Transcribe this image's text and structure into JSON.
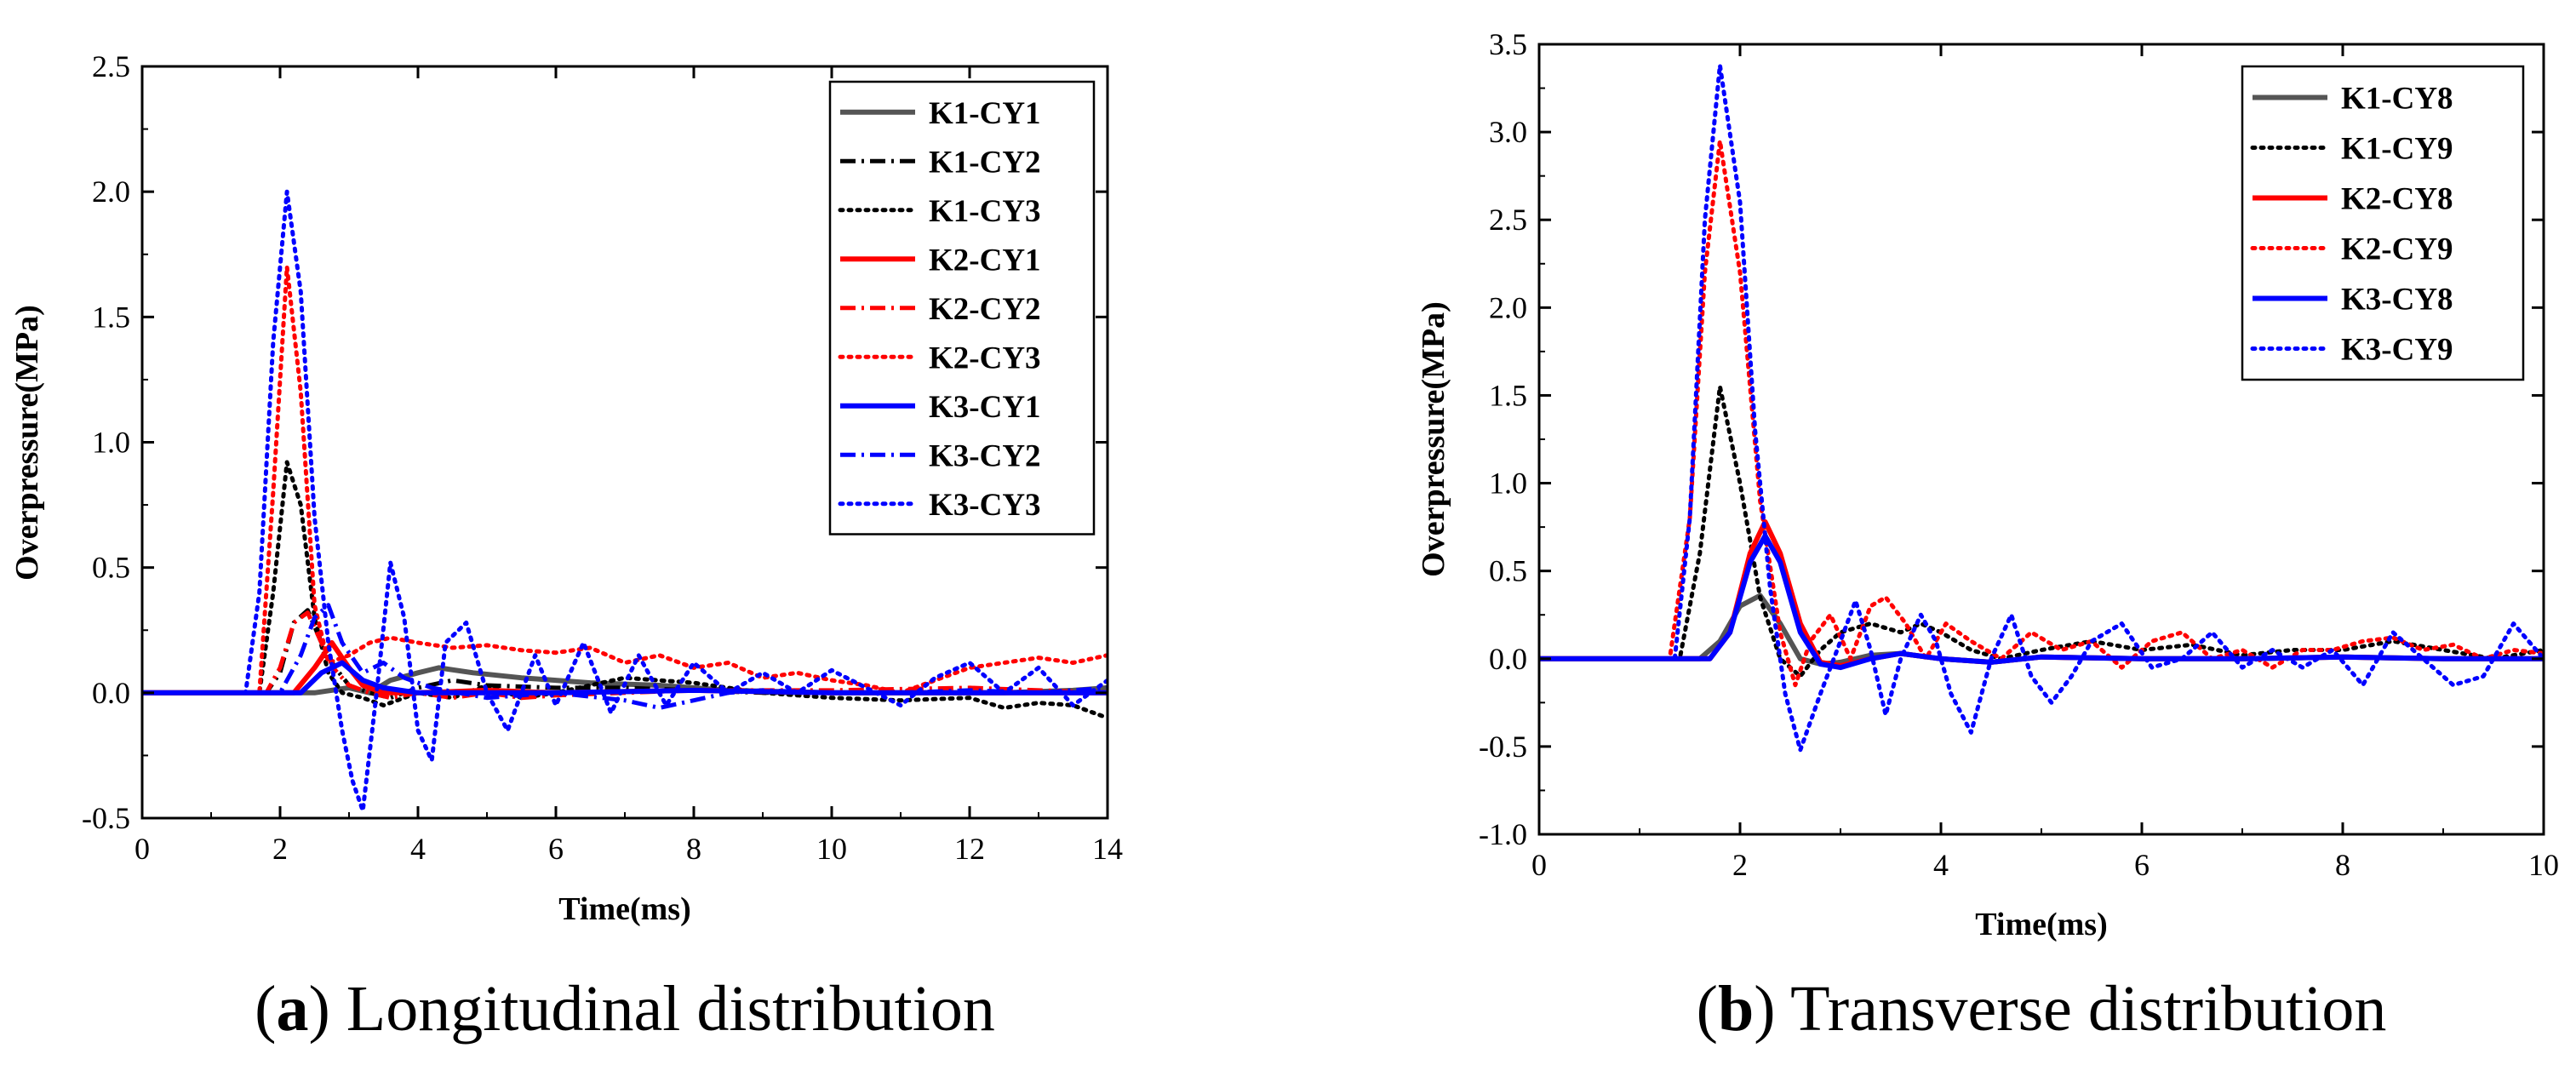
{
  "chart_data": [
    {
      "type": "line",
      "panel_letter": "a",
      "caption": "Longitudinal distribution",
      "xlabel": "Time(ms)",
      "ylabel": "Overpressure(MPa)",
      "xlim": [
        0,
        14
      ],
      "ylim": [
        -0.5,
        2.5
      ],
      "xticks": [
        0,
        2,
        4,
        6,
        8,
        10,
        12,
        14
      ],
      "yticks": [
        -0.5,
        0.0,
        0.5,
        1.0,
        1.5,
        2.0,
        2.5
      ],
      "grid": false,
      "legend_position": "top-right",
      "series": [
        {
          "name": "K1-CY1",
          "color": "#555555",
          "style": "solid",
          "x": [
            0,
            1.5,
            2.0,
            2.5,
            3.0,
            3.3,
            3.6,
            4.0,
            4.3,
            4.8,
            5.5,
            6.0,
            6.5,
            7.5,
            8.5,
            10.0,
            11.5,
            12.5,
            13.5,
            14.0
          ],
          "y": [
            0,
            0,
            0,
            0.0,
            0.02,
            0.0,
            0.05,
            0.08,
            0.1,
            0.08,
            0.06,
            0.05,
            0.04,
            0.03,
            0.01,
            0.0,
            0.0,
            0.0,
            0.01,
            0.02
          ]
        },
        {
          "name": "K1-CY2",
          "color": "#000000",
          "style": "dashdot",
          "x": [
            0,
            1.8,
            2.0,
            2.2,
            2.4,
            2.6,
            2.8,
            3.0,
            3.3,
            3.6,
            4.0,
            4.5,
            5.0,
            6.0,
            7.0,
            8.0,
            9.0,
            10.0,
            12.0,
            14.0
          ],
          "y": [
            0,
            0,
            0.08,
            0.28,
            0.33,
            0.2,
            0.1,
            0.03,
            0.0,
            -0.02,
            0.02,
            0.05,
            0.03,
            0.02,
            0.02,
            0.01,
            0.0,
            0.0,
            0.0,
            0.0
          ]
        },
        {
          "name": "K1-CY3",
          "color": "#000000",
          "style": "dot",
          "x": [
            0,
            1.7,
            1.9,
            2.1,
            2.3,
            2.5,
            2.7,
            2.9,
            3.2,
            3.5,
            4.0,
            4.5,
            5.0,
            5.5,
            6.0,
            6.5,
            7.0,
            8.0,
            9.0,
            10.0,
            11.0,
            12.0,
            12.5,
            13.0,
            13.5,
            14.0
          ],
          "y": [
            0,
            0,
            0.4,
            0.92,
            0.75,
            0.3,
            0.08,
            0.0,
            -0.02,
            -0.05,
            0.0,
            -0.02,
            0.03,
            -0.02,
            0.0,
            0.03,
            0.06,
            0.04,
            0.0,
            -0.02,
            -0.03,
            -0.02,
            -0.06,
            -0.04,
            -0.05,
            -0.1
          ]
        },
        {
          "name": "K2-CY1",
          "color": "#ff0000",
          "style": "solid",
          "x": [
            0,
            2.2,
            2.5,
            2.75,
            3.0,
            3.2,
            3.5,
            4.0,
            5.0,
            6.0,
            8.0,
            10.0,
            12.0,
            14.0
          ],
          "y": [
            0,
            0,
            0.1,
            0.2,
            0.1,
            0.03,
            0.0,
            0.0,
            0.01,
            0.0,
            0.01,
            0.0,
            0.0,
            0.0
          ]
        },
        {
          "name": "K2-CY2",
          "color": "#ff0000",
          "style": "dashdot",
          "x": [
            0,
            1.8,
            2.0,
            2.2,
            2.4,
            2.6,
            2.8,
            3.0,
            3.3,
            3.6,
            4.0,
            4.5,
            5.0,
            5.5,
            6.0,
            7.0,
            8.0,
            10.0,
            12.0,
            14.0
          ],
          "y": [
            0,
            0,
            0.1,
            0.28,
            0.32,
            0.2,
            0.09,
            0.03,
            0.0,
            -0.02,
            0.0,
            -0.02,
            0.0,
            -0.02,
            -0.01,
            0.0,
            0.01,
            0.01,
            0.02,
            0.0
          ]
        },
        {
          "name": "K2-CY3",
          "color": "#ff0000",
          "style": "dot",
          "x": [
            0,
            1.7,
            1.9,
            2.1,
            2.3,
            2.5,
            2.7,
            3.0,
            3.3,
            3.6,
            4.0,
            4.5,
            5.0,
            5.5,
            6.0,
            6.5,
            7.0,
            7.5,
            8.0,
            8.5,
            9.0,
            9.5,
            10.0,
            10.5,
            11.0,
            11.5,
            12.0,
            12.5,
            13.0,
            13.5,
            14.0
          ],
          "y": [
            0,
            0,
            0.8,
            1.7,
            1.2,
            0.35,
            0.12,
            0.15,
            0.2,
            0.22,
            0.2,
            0.18,
            0.19,
            0.17,
            0.16,
            0.18,
            0.12,
            0.15,
            0.1,
            0.12,
            0.06,
            0.08,
            0.05,
            0.03,
            0.0,
            0.05,
            0.1,
            0.12,
            0.14,
            0.12,
            0.15
          ]
        },
        {
          "name": "K3-CY1",
          "color": "#0000ff",
          "style": "solid",
          "x": [
            0,
            2.3,
            2.6,
            2.9,
            3.2,
            3.5,
            4.0,
            5.0,
            6.0,
            8.0,
            10.0,
            12.0,
            14.0
          ],
          "y": [
            0,
            0,
            0.08,
            0.12,
            0.05,
            0.02,
            0.0,
            0.0,
            0.0,
            0.01,
            0.0,
            0.0,
            0.0
          ]
        },
        {
          "name": "K3-CY2",
          "color": "#0000ff",
          "style": "dashdot",
          "x": [
            0,
            2.0,
            2.3,
            2.5,
            2.7,
            2.9,
            3.2,
            3.5,
            3.8,
            4.2,
            5.0,
            6.0,
            7.0,
            7.5,
            8.0,
            8.5,
            9.0,
            10.0,
            11.0,
            12.0,
            13.0,
            14.0
          ],
          "y": [
            0,
            0,
            0.15,
            0.3,
            0.35,
            0.2,
            0.08,
            0.12,
            0.06,
            0.02,
            -0.02,
            0.0,
            -0.03,
            -0.06,
            -0.03,
            0.0,
            0.01,
            0.0,
            0.0,
            0.01,
            0.0,
            0.02
          ]
        },
        {
          "name": "K3-CY3",
          "color": "#0000ff",
          "style": "dot",
          "x": [
            0,
            1.5,
            1.7,
            1.9,
            2.1,
            2.3,
            2.5,
            2.7,
            2.9,
            3.05,
            3.2,
            3.4,
            3.6,
            3.8,
            4.0,
            4.2,
            4.4,
            4.7,
            5.0,
            5.3,
            5.7,
            6.0,
            6.4,
            6.8,
            7.2,
            7.6,
            8.0,
            8.5,
            9.0,
            9.5,
            10.0,
            10.5,
            11.0,
            11.5,
            12.0,
            12.5,
            13.0,
            13.5,
            14.0
          ],
          "y": [
            0,
            0,
            0.4,
            1.4,
            2.0,
            1.6,
            0.7,
            0.2,
            -0.15,
            -0.35,
            -0.47,
            0.0,
            0.52,
            0.3,
            -0.15,
            -0.27,
            0.2,
            0.28,
            0.0,
            -0.15,
            0.15,
            -0.05,
            0.2,
            -0.08,
            0.15,
            -0.05,
            0.12,
            0.0,
            0.08,
            0.0,
            0.09,
            0.02,
            -0.05,
            0.06,
            0.12,
            0.0,
            0.1,
            -0.05,
            0.05
          ]
        }
      ]
    },
    {
      "type": "line",
      "panel_letter": "b",
      "caption": "Transverse distribution",
      "xlabel": "Time(ms)",
      "ylabel": "Overpressure(MPa)",
      "xlim": [
        0,
        10
      ],
      "ylim": [
        -1.0,
        3.5
      ],
      "xticks": [
        0,
        2,
        4,
        6,
        8,
        10
      ],
      "yticks": [
        -1.0,
        -0.5,
        0.0,
        0.5,
        1.0,
        1.5,
        2.0,
        2.5,
        3.0,
        3.5
      ],
      "grid": false,
      "legend_position": "top-right",
      "series": [
        {
          "name": "K1-CY8",
          "color": "#555555",
          "style": "solid",
          "x": [
            0,
            1.6,
            1.8,
            2.0,
            2.2,
            2.4,
            2.6,
            2.8,
            3.0,
            3.3,
            3.6,
            4.0,
            4.5,
            5.0,
            6.0,
            7.0,
            8.0,
            9.0,
            10.0
          ],
          "y": [
            0,
            0,
            0.1,
            0.3,
            0.36,
            0.2,
            0.0,
            -0.03,
            -0.02,
            0.02,
            0.03,
            0.0,
            -0.02,
            0.01,
            0.0,
            0.0,
            0.01,
            0.0,
            0.0
          ]
        },
        {
          "name": "K1-CY9",
          "color": "#000000",
          "style": "dot",
          "x": [
            0,
            1.4,
            1.6,
            1.8,
            2.0,
            2.2,
            2.4,
            2.6,
            2.8,
            3.0,
            3.3,
            3.6,
            3.8,
            4.0,
            4.3,
            4.6,
            5.0,
            5.5,
            6.0,
            6.5,
            7.0,
            7.5,
            8.0,
            8.5,
            9.0,
            9.5,
            10.0
          ],
          "y": [
            0,
            0,
            0.6,
            1.55,
            1.0,
            0.35,
            0.0,
            -0.1,
            0.05,
            0.15,
            0.2,
            0.15,
            0.2,
            0.15,
            0.05,
            0.0,
            0.05,
            0.1,
            0.05,
            0.08,
            0.02,
            0.05,
            0.05,
            0.1,
            0.05,
            0.0,
            0.05
          ]
        },
        {
          "name": "K2-CY8",
          "color": "#ff0000",
          "style": "solid",
          "x": [
            0,
            1.7,
            1.9,
            2.1,
            2.25,
            2.4,
            2.6,
            2.8,
            3.0,
            3.3,
            3.6,
            4.0,
            4.5,
            5.0,
            6.0,
            7.0,
            8.0,
            9.0,
            10.0
          ],
          "y": [
            0,
            0,
            0.15,
            0.6,
            0.78,
            0.6,
            0.2,
            -0.02,
            -0.04,
            0.0,
            0.03,
            0.0,
            -0.02,
            0.01,
            0.0,
            0.0,
            0.01,
            0.0,
            0.0
          ]
        },
        {
          "name": "K2-CY9",
          "color": "#ff0000",
          "style": "dot",
          "x": [
            0,
            1.3,
            1.5,
            1.65,
            1.8,
            2.0,
            2.2,
            2.4,
            2.55,
            2.7,
            2.9,
            3.1,
            3.3,
            3.45,
            3.65,
            3.85,
            4.05,
            4.3,
            4.6,
            4.9,
            5.2,
            5.5,
            5.8,
            6.1,
            6.4,
            6.7,
            7.0,
            7.3,
            7.6,
            7.9,
            8.2,
            8.5,
            8.8,
            9.1,
            9.4,
            9.7,
            10.0
          ],
          "y": [
            0,
            0,
            0.8,
            2.2,
            2.95,
            2.2,
            0.9,
            0.15,
            -0.15,
            0.1,
            0.25,
            0.0,
            0.3,
            0.35,
            0.2,
            0.0,
            0.2,
            0.1,
            0.0,
            0.15,
            0.05,
            0.1,
            -0.05,
            0.1,
            0.15,
            0.0,
            0.05,
            -0.05,
            0.05,
            0.05,
            0.1,
            0.12,
            0.05,
            0.08,
            0.0,
            0.05,
            0.03
          ]
        },
        {
          "name": "K3-CY8",
          "color": "#0000ff",
          "style": "solid",
          "x": [
            0,
            1.7,
            1.9,
            2.1,
            2.25,
            2.4,
            2.6,
            2.8,
            3.0,
            3.3,
            3.6,
            4.0,
            4.5,
            5.0,
            6.0,
            7.0,
            8.0,
            9.0,
            10.0
          ],
          "y": [
            0,
            0,
            0.15,
            0.55,
            0.7,
            0.55,
            0.15,
            -0.03,
            -0.05,
            0.0,
            0.03,
            0.0,
            -0.02,
            0.01,
            0.0,
            0.0,
            0.01,
            0.0,
            0.0
          ]
        },
        {
          "name": "K3-CY9",
          "color": "#0000ff",
          "style": "dot",
          "x": [
            0,
            1.35,
            1.5,
            1.65,
            1.8,
            2.0,
            2.15,
            2.3,
            2.45,
            2.6,
            2.8,
            3.0,
            3.15,
            3.3,
            3.45,
            3.6,
            3.8,
            3.95,
            4.1,
            4.3,
            4.5,
            4.7,
            4.9,
            5.1,
            5.3,
            5.5,
            5.8,
            6.1,
            6.4,
            6.7,
            7.0,
            7.3,
            7.6,
            7.9,
            8.2,
            8.5,
            8.8,
            9.1,
            9.4,
            9.7,
            10.0
          ],
          "y": [
            0,
            0,
            0.8,
            2.5,
            3.38,
            2.6,
            1.3,
            0.4,
            -0.2,
            -0.52,
            -0.2,
            0.1,
            0.33,
            0.05,
            -0.32,
            0.0,
            0.25,
            0.1,
            -0.2,
            -0.42,
            0.0,
            0.25,
            -0.1,
            -0.25,
            -0.1,
            0.1,
            0.2,
            -0.05,
            0.0,
            0.15,
            -0.05,
            0.05,
            -0.05,
            0.05,
            -0.15,
            0.15,
            0.0,
            -0.15,
            -0.1,
            0.2,
            0.0
          ]
        }
      ]
    }
  ]
}
